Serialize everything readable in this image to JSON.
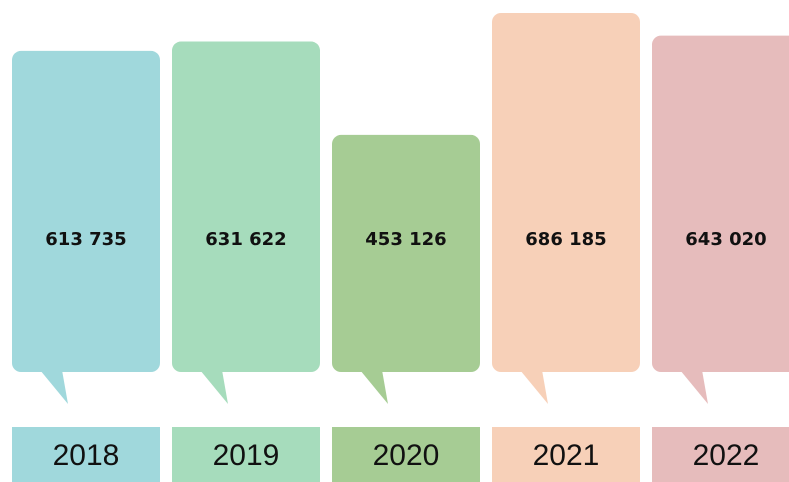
{
  "chart_data": {
    "type": "bar",
    "categories": [
      "2018",
      "2019",
      "2020",
      "2021",
      "2022"
    ],
    "values": [
      613735,
      631622,
      453126,
      686185,
      643020
    ],
    "value_labels": [
      "613 735",
      "631 622",
      "453 126",
      "686 185",
      "643 020"
    ],
    "colors": [
      "#a0d8dc",
      "#a6dcbc",
      "#a6cc94",
      "#f7d0b8",
      "#e6bcbc"
    ]
  }
}
